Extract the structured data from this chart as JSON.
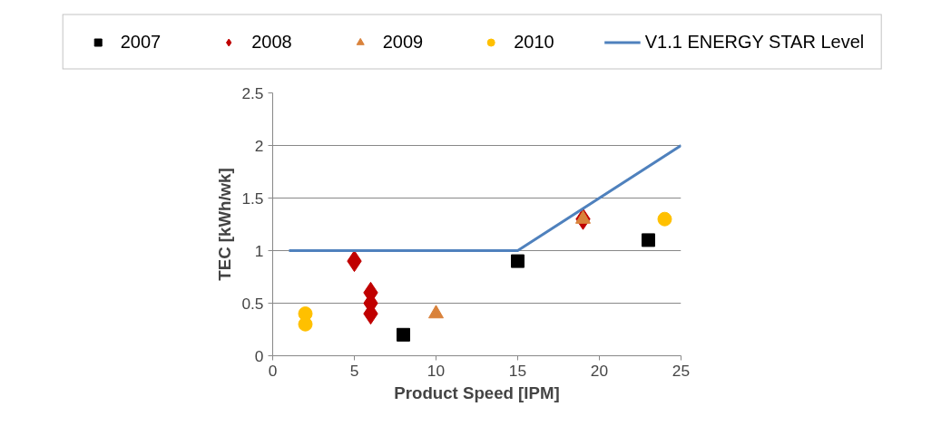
{
  "chart_data": {
    "type": "scatter",
    "xlabel": "Product Speed [IPM]",
    "ylabel": "TEC [kWh/wk]",
    "xlim": [
      0,
      25
    ],
    "ylim": [
      0,
      2.5
    ],
    "xticks": [
      0,
      5,
      10,
      15,
      20,
      25
    ],
    "yticks": [
      0,
      0.5,
      1,
      1.5,
      2,
      2.5
    ],
    "grid": "y",
    "legend": "top",
    "series": [
      {
        "name": "2007",
        "color": "#000000",
        "marker": "square",
        "x": [
          8,
          15,
          23
        ],
        "values": [
          0.2,
          0.9,
          1.1
        ]
      },
      {
        "name": "2008",
        "color": "#c00000",
        "marker": "diamond",
        "x": [
          5,
          6,
          6,
          6,
          19
        ],
        "values": [
          0.9,
          0.6,
          0.5,
          0.4,
          1.3
        ]
      },
      {
        "name": "2009",
        "color": "#d9823b",
        "marker": "triangle",
        "x": [
          10,
          19
        ],
        "values": [
          0.4,
          1.3
        ]
      },
      {
        "name": "2010",
        "color": "#ffc000",
        "marker": "circle",
        "x": [
          2,
          2,
          24
        ],
        "values": [
          0.4,
          0.3,
          1.3
        ]
      },
      {
        "name": "V1.1 ENERGY STAR Level",
        "type": "line",
        "color": "#4f81bd",
        "marker": "none",
        "x": [
          1,
          15,
          25
        ],
        "values": [
          1,
          1,
          2
        ]
      }
    ]
  }
}
